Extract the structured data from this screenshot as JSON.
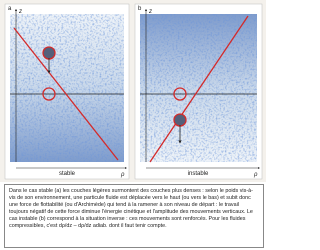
{
  "panels": [
    {
      "letter": "a",
      "z_label": "z",
      "rho_label": "ρ",
      "label": "stable"
    },
    {
      "letter": "b",
      "z_label": "z",
      "rho_label": "ρ",
      "label": "instable"
    }
  ],
  "caption": "Dans le cas stable (a) les couches légères surmontent des couches plus denses : selon le poids vis-à-vis de son environnement, une particule fluide est déplacée vers le haut (ou vers le bas) et subit donc une force de flottabilité (ou d'Archimède) qui tend à la ramener à son niveau de départ : le travail toujours négatif de cette force diminue l'énergie cinétique et l'amplitude des mouvements verticaux. Le cas instable (b) correspond à la situation inverse : ces mouvements sont renforcés. Pour les fluides compressibles, c'est dρ/dz – dρ/dz adiab. dont il faut tenir compte."
}
